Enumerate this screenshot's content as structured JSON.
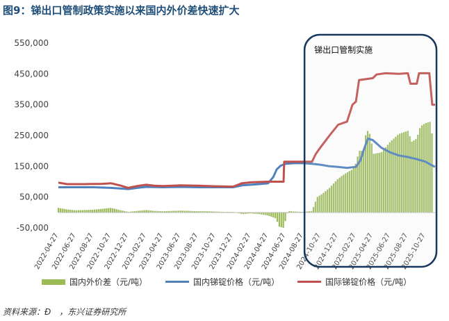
{
  "title": "图9：锑出口管制政策实施以来国内外价差快速扩大",
  "source": "资料来源：Đ　，东兴证券研究所",
  "colors": {
    "title": "#1f4e79",
    "domestic": "#4f81bd",
    "international": "#c0504d",
    "spread": "#9bbb59",
    "frame": "#17375e"
  },
  "chart_data": {
    "type": "bar+line",
    "title": "图9：锑出口管制政策实施以来国内外价差快速扩大",
    "xlabel": "",
    "ylabel": "",
    "ylim": [
      -50000,
      550000
    ],
    "yticks": [
      "550,000",
      "450,000",
      "350,000",
      "250,000",
      "150,000",
      "50,000",
      "-50,000"
    ],
    "ytick_values": [
      550000,
      450000,
      350000,
      250000,
      150000,
      50000,
      -50000
    ],
    "xticks": [
      "2022-04-27",
      "2022-06-27",
      "2022-08-27",
      "2022-10-27",
      "2022-12-27",
      "2023-02-27",
      "2023-04-27",
      "2023-06-27",
      "2023-08-27",
      "2023-10-27",
      "2023-12-27",
      "2024-02-27",
      "2024-04-27",
      "2024-06-27",
      "2024-08-27",
      "2024-10-27",
      "2024-12-27",
      "2025-02-27",
      "2025-04-27",
      "2025-06-27",
      "2025-08-27",
      "2025-10-27"
    ],
    "x_start": "2022-04-27",
    "x_end": "2025-11-30",
    "grid": false,
    "legend_position": "bottom",
    "annotation": {
      "text": "锑出口管制实施",
      "x_from": "2024-08-27",
      "x_to": "2025-11-30"
    },
    "series": [
      {
        "name": "国内外价差（元/吨）",
        "type": "bar",
        "color": "#9bbb59",
        "points": [
          [
            "2022-04-27",
            15000
          ],
          [
            "2022-05-27",
            10000
          ],
          [
            "2022-06-27",
            7000
          ],
          [
            "2022-07-27",
            8000
          ],
          [
            "2022-08-27",
            9000
          ],
          [
            "2022-09-27",
            12000
          ],
          [
            "2022-10-27",
            15000
          ],
          [
            "2022-11-27",
            8000
          ],
          [
            "2022-12-27",
            2000
          ],
          [
            "2023-01-27",
            5000
          ],
          [
            "2023-02-27",
            8000
          ],
          [
            "2023-03-27",
            5000
          ],
          [
            "2023-04-27",
            4000
          ],
          [
            "2023-05-27",
            5000
          ],
          [
            "2023-06-27",
            6000
          ],
          [
            "2023-07-27",
            5000
          ],
          [
            "2023-08-27",
            4000
          ],
          [
            "2023-09-27",
            4000
          ],
          [
            "2023-10-27",
            3000
          ],
          [
            "2023-11-27",
            2000
          ],
          [
            "2023-12-27",
            2000
          ],
          [
            "2024-01-27",
            -5000
          ],
          [
            "2024-02-27",
            -3000
          ],
          [
            "2024-03-27",
            -5000
          ],
          [
            "2024-04-27",
            -10000
          ],
          [
            "2024-05-27",
            -20000
          ],
          [
            "2024-06-01",
            -45000
          ],
          [
            "2024-06-20",
            -50000
          ],
          [
            "2024-07-05",
            5000
          ],
          [
            "2024-07-27",
            3000
          ],
          [
            "2024-08-27",
            2000
          ],
          [
            "2024-09-27",
            5000
          ],
          [
            "2024-10-15",
            50000
          ],
          [
            "2024-11-01",
            60000
          ],
          [
            "2024-11-27",
            80000
          ],
          [
            "2024-12-27",
            110000
          ],
          [
            "2025-01-27",
            130000
          ],
          [
            "2025-02-15",
            140000
          ],
          [
            "2025-02-27",
            160000
          ],
          [
            "2025-03-10",
            200000
          ],
          [
            "2025-03-25",
            200000
          ],
          [
            "2025-04-05",
            270000
          ],
          [
            "2025-04-20",
            250000
          ],
          [
            "2025-04-27",
            190000
          ],
          [
            "2025-05-27",
            195000
          ],
          [
            "2025-06-27",
            230000
          ],
          [
            "2025-07-27",
            255000
          ],
          [
            "2025-08-27",
            265000
          ],
          [
            "2025-09-10",
            230000
          ],
          [
            "2025-09-27",
            240000
          ],
          [
            "2025-10-10",
            280000
          ],
          [
            "2025-10-27",
            290000
          ],
          [
            "2025-11-15",
            295000
          ],
          [
            "2025-11-25",
            200000
          ]
        ]
      },
      {
        "name": "国内锑锭价格（元/吨）",
        "type": "line",
        "color": "#4f81bd",
        "points": [
          [
            "2022-04-27",
            82000
          ],
          [
            "2022-08-27",
            82000
          ],
          [
            "2022-10-27",
            80000
          ],
          [
            "2022-11-27",
            78000
          ],
          [
            "2022-12-27",
            76000
          ],
          [
            "2023-01-27",
            80000
          ],
          [
            "2023-02-27",
            83000
          ],
          [
            "2023-04-27",
            82000
          ],
          [
            "2023-06-27",
            83000
          ],
          [
            "2023-08-27",
            82000
          ],
          [
            "2023-10-27",
            82000
          ],
          [
            "2023-12-27",
            82000
          ],
          [
            "2024-01-27",
            88000
          ],
          [
            "2024-02-27",
            90000
          ],
          [
            "2024-03-27",
            92000
          ],
          [
            "2024-04-27",
            95000
          ],
          [
            "2024-05-15",
            115000
          ],
          [
            "2024-05-27",
            140000
          ],
          [
            "2024-06-10",
            152000
          ],
          [
            "2024-06-27",
            158000
          ],
          [
            "2024-07-27",
            160000
          ],
          [
            "2024-08-27",
            160000
          ],
          [
            "2024-09-27",
            158000
          ],
          [
            "2024-10-27",
            155000
          ],
          [
            "2024-11-27",
            150000
          ],
          [
            "2024-12-27",
            148000
          ],
          [
            "2025-01-27",
            145000
          ],
          [
            "2025-02-27",
            148000
          ],
          [
            "2025-03-15",
            170000
          ],
          [
            "2025-03-27",
            205000
          ],
          [
            "2025-04-10",
            240000
          ],
          [
            "2025-04-27",
            235000
          ],
          [
            "2025-05-15",
            220000
          ],
          [
            "2025-05-27",
            210000
          ],
          [
            "2025-06-27",
            195000
          ],
          [
            "2025-07-27",
            185000
          ],
          [
            "2025-08-27",
            180000
          ],
          [
            "2025-09-27",
            173000
          ],
          [
            "2025-10-27",
            165000
          ],
          [
            "2025-11-15",
            155000
          ],
          [
            "2025-11-30",
            148000
          ]
        ]
      },
      {
        "name": "国际锑锭价格（元/吨）",
        "type": "line",
        "color": "#c0504d",
        "points": [
          [
            "2022-04-27",
            97000
          ],
          [
            "2022-05-27",
            92000
          ],
          [
            "2022-07-27",
            92000
          ],
          [
            "2022-09-27",
            93000
          ],
          [
            "2022-10-27",
            95000
          ],
          [
            "2022-11-27",
            88000
          ],
          [
            "2022-12-27",
            80000
          ],
          [
            "2023-01-27",
            86000
          ],
          [
            "2023-02-27",
            90000
          ],
          [
            "2023-03-27",
            87000
          ],
          [
            "2023-04-27",
            86000
          ],
          [
            "2023-06-27",
            88000
          ],
          [
            "2023-08-27",
            87000
          ],
          [
            "2023-10-27",
            85000
          ],
          [
            "2023-12-27",
            84000
          ],
          [
            "2024-01-27",
            95000
          ],
          [
            "2024-02-27",
            98000
          ],
          [
            "2024-04-27",
            100000
          ],
          [
            "2024-05-27",
            100000
          ],
          [
            "2024-06-20",
            100000
          ],
          [
            "2024-06-22",
            165000
          ],
          [
            "2024-08-27",
            165000
          ],
          [
            "2024-09-27",
            165000
          ],
          [
            "2024-10-10",
            190000
          ],
          [
            "2024-10-27",
            212000
          ],
          [
            "2024-11-27",
            250000
          ],
          [
            "2024-12-27",
            285000
          ],
          [
            "2025-01-27",
            295000
          ],
          [
            "2025-02-15",
            350000
          ],
          [
            "2025-02-27",
            360000
          ],
          [
            "2025-03-10",
            430000
          ],
          [
            "2025-03-27",
            432000
          ],
          [
            "2025-04-27",
            436000
          ],
          [
            "2025-05-10",
            448000
          ],
          [
            "2025-06-10",
            452000
          ],
          [
            "2025-07-27",
            450000
          ],
          [
            "2025-08-27",
            452000
          ],
          [
            "2025-09-05",
            418000
          ],
          [
            "2025-09-27",
            418000
          ],
          [
            "2025-10-05",
            452000
          ],
          [
            "2025-10-27",
            452000
          ],
          [
            "2025-11-10",
            452000
          ],
          [
            "2025-11-20",
            350000
          ],
          [
            "2025-11-30",
            350000
          ]
        ]
      }
    ]
  }
}
